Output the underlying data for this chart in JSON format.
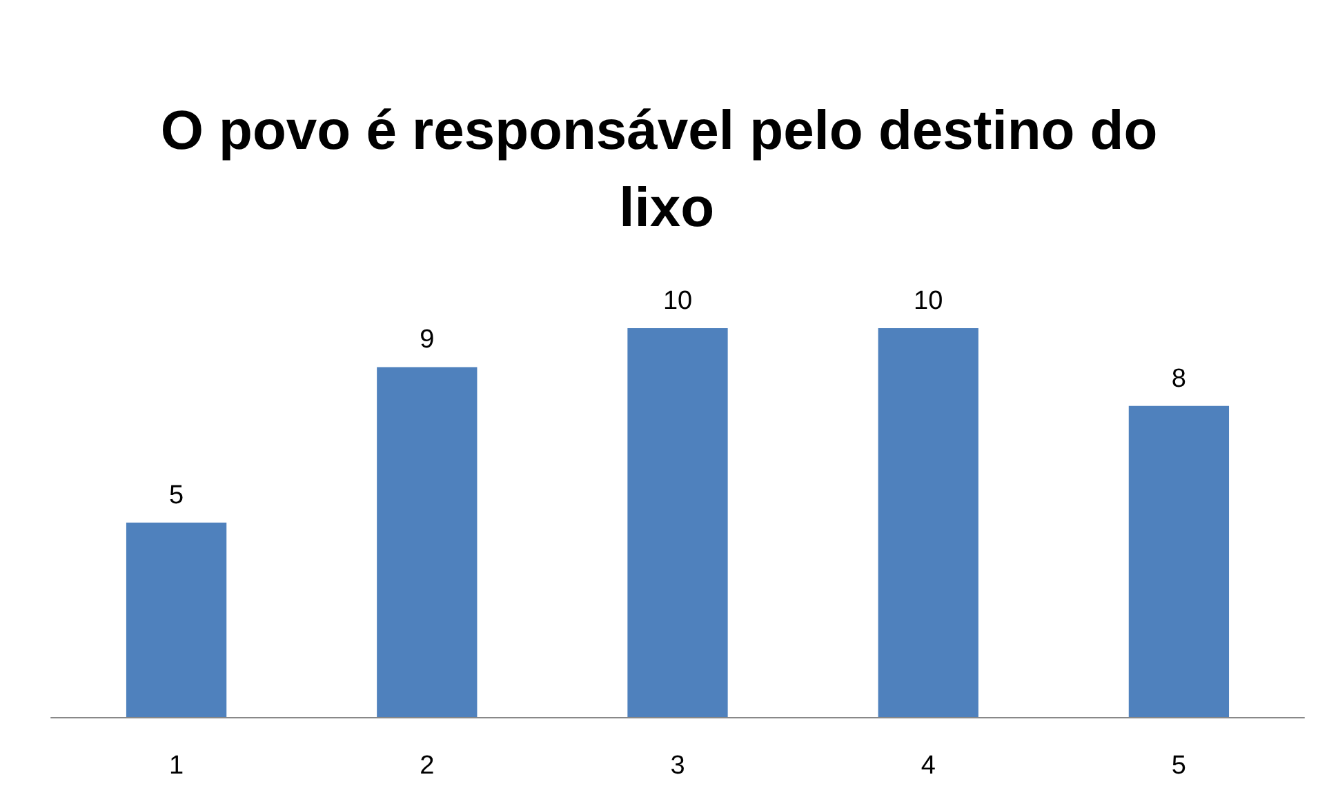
{
  "chart_data": {
    "type": "bar",
    "title": "O povo é responsável pelo destino do lixo",
    "categories": [
      "1",
      "2",
      "3",
      "4",
      "5"
    ],
    "values": [
      5,
      9,
      10,
      10,
      8
    ],
    "color": "#4f81bd",
    "data_labels": true
  }
}
